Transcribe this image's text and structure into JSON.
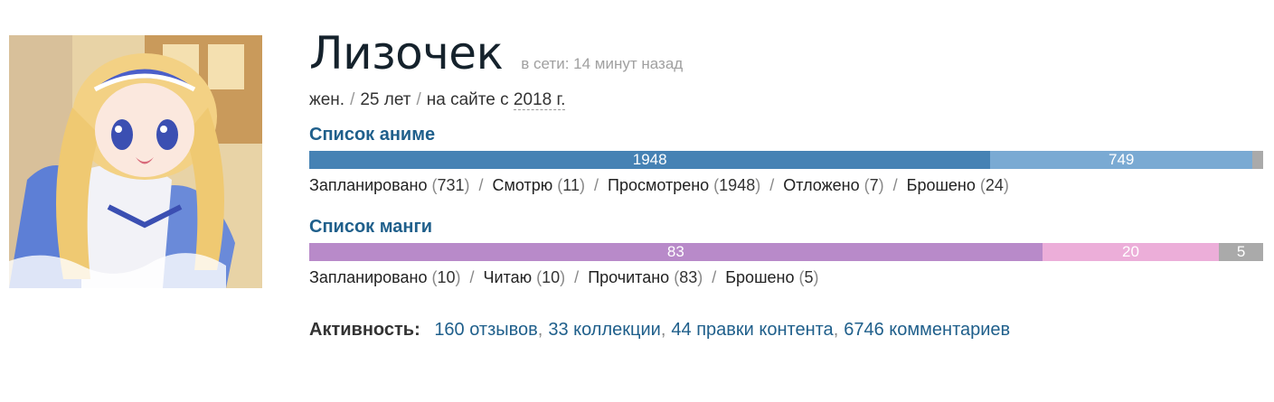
{
  "profile": {
    "nickname": "Лизочек",
    "online_status": "в сети: 14 минут назад",
    "gender": "жен.",
    "age": "25 лет",
    "on_site_prefix": "на сайте с",
    "on_site_year": "2018 г.",
    "separator": "/"
  },
  "anime": {
    "title": "Список аниме",
    "bar": [
      {
        "label": "1948",
        "value": 1948,
        "color": "#4682b4"
      },
      {
        "label": "749",
        "value": 749,
        "color": "#7aaad3"
      },
      {
        "label": "",
        "value": 31,
        "color": "#aaaaaa"
      }
    ],
    "stats": [
      {
        "label": "Запланировано",
        "count": "731"
      },
      {
        "label": "Смотрю",
        "count": "11"
      },
      {
        "label": "Просмотрено",
        "count": "1948"
      },
      {
        "label": "Отложено",
        "count": "7"
      },
      {
        "label": "Брошено",
        "count": "24"
      }
    ]
  },
  "manga": {
    "title": "Список манги",
    "bar": [
      {
        "label": "83",
        "value": 83,
        "color": "#b88ac9"
      },
      {
        "label": "20",
        "value": 20,
        "color": "#ecaed9"
      },
      {
        "label": "5",
        "value": 5,
        "color": "#aaaaaa"
      }
    ],
    "stats": [
      {
        "label": "Запланировано",
        "count": "10"
      },
      {
        "label": "Читаю",
        "count": "10"
      },
      {
        "label": "Прочитано",
        "count": "83"
      },
      {
        "label": "Брошено",
        "count": "5"
      }
    ]
  },
  "activity": {
    "label": "Активность:",
    "links": [
      "160 отзывов",
      "33 коллекции",
      "44 правки контента",
      "6746 комментариев"
    ]
  },
  "avatar": {
    "icon": "user-avatar-illustration"
  }
}
